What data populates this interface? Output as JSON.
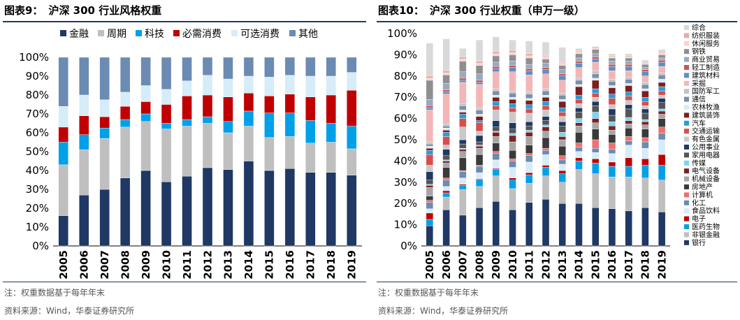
{
  "left_panel": {
    "figure_label": "图表9：",
    "title": "沪深 300 行业风格权重",
    "note": "注：权重数据基于每年年末",
    "source": "资料来源：Wind，华泰证券研究所"
  },
  "right_panel": {
    "figure_label": "图表10：",
    "title": "沪深 300 行业权重（申万一级）",
    "note": "注：权重数据基于每年年末",
    "source": "资料来源：Wind，华泰证券研究所"
  },
  "chart_data": [
    {
      "type": "bar",
      "stacked": true,
      "categories": [
        "2005",
        "2006",
        "2007",
        "2008",
        "2009",
        "2010",
        "2011",
        "2012",
        "2013",
        "2014",
        "2015",
        "2016",
        "2017",
        "2018",
        "2019"
      ],
      "y_tick_labels": [
        "0%",
        "10%",
        "20%",
        "30%",
        "40%",
        "50%",
        "60%",
        "70%",
        "80%",
        "90%",
        "100%"
      ],
      "ylim": [
        0,
        100
      ],
      "legend_position": "top",
      "series": [
        {
          "name": "金融",
          "color": "#1f3864",
          "values": [
            16,
            27,
            30,
            36,
            40,
            34,
            37,
            41.5,
            40.5,
            45,
            40,
            41,
            39,
            39,
            37.5
          ]
        },
        {
          "name": "周期",
          "color": "#bfbfbf",
          "values": [
            27,
            24,
            27,
            27,
            26,
            28,
            26.5,
            23.5,
            19.5,
            18.5,
            17.5,
            17,
            15.5,
            16,
            14
          ]
        },
        {
          "name": "科技",
          "color": "#00a0e9",
          "values": [
            12,
            8,
            5.5,
            4,
            4,
            3,
            3.5,
            3.5,
            6,
            8,
            13,
            12.5,
            12,
            10,
            12
          ]
        },
        {
          "name": "必需消费",
          "color": "#c00000",
          "values": [
            8,
            10,
            6,
            7,
            6.5,
            10,
            12.5,
            11.5,
            13,
            9.5,
            9,
            10,
            12.5,
            15,
            19
          ]
        },
        {
          "name": "可选消费",
          "color": "#d6ecf8",
          "values": [
            11,
            11,
            9,
            7.5,
            8.5,
            8,
            8,
            10.5,
            9.5,
            9,
            10,
            10,
            11,
            10,
            9.5
          ]
        },
        {
          "name": "其他",
          "color": "#6c8bb2",
          "values": [
            26,
            20,
            22.5,
            18.5,
            15,
            17,
            12.5,
            9.5,
            11.5,
            10,
            10.5,
            9.5,
            10,
            10,
            8
          ]
        }
      ]
    },
    {
      "type": "bar",
      "stacked": true,
      "categories": [
        "2005",
        "2006",
        "2007",
        "2008",
        "2009",
        "2010",
        "2011",
        "2012",
        "2013",
        "2014",
        "2015",
        "2016",
        "2017",
        "2018",
        "2019"
      ],
      "y_tick_labels": [
        "0%",
        "10%",
        "20%",
        "30%",
        "40%",
        "50%",
        "60%",
        "70%",
        "80%",
        "90%",
        "100%"
      ],
      "ylim": [
        0,
        100
      ],
      "legend_position": "right",
      "series": [
        {
          "name": "银行",
          "color": "#1f3864",
          "values": [
            9.5,
            17,
            14.5,
            18,
            21,
            17,
            20.5,
            22,
            20,
            20,
            18,
            17.5,
            16.5,
            18,
            16
          ]
        },
        {
          "name": "非银金融",
          "color": "#bfbfbf",
          "values": [
            0,
            6,
            12,
            10,
            12,
            10,
            9,
            11,
            10,
            16,
            16,
            15,
            16,
            14,
            15
          ]
        },
        {
          "name": "医药生物",
          "color": "#00a0e9",
          "values": [
            3,
            2,
            2,
            3,
            3,
            4,
            4,
            4,
            4,
            4,
            5,
            5,
            5,
            6,
            7
          ]
        },
        {
          "name": "电子",
          "color": "#c00000",
          "values": [
            3,
            1,
            0.5,
            0.5,
            0.5,
            1,
            1,
            1,
            1.5,
            1.5,
            2,
            2,
            4,
            3,
            5
          ]
        },
        {
          "name": "食品饮料",
          "color": "#d6ecf8",
          "values": [
            2,
            2,
            3,
            3,
            4,
            5,
            5,
            5,
            3,
            3,
            3,
            4,
            6,
            5,
            7
          ]
        },
        {
          "name": "化工",
          "color": "#6c8bb2",
          "values": [
            3,
            3,
            3,
            3,
            3,
            3,
            3,
            2,
            2,
            2,
            2,
            2,
            2,
            3,
            3
          ]
        },
        {
          "name": "计算机",
          "color": "#ee7070",
          "values": [
            1,
            1,
            0.5,
            0.5,
            1,
            1,
            1,
            1,
            2,
            2,
            4,
            3,
            2,
            2,
            3
          ]
        },
        {
          "name": "房地产",
          "color": "#3a3a3a",
          "values": [
            2,
            5,
            6,
            5,
            4,
            4,
            4,
            5,
            4.5,
            5,
            5,
            4,
            4,
            4,
            4
          ]
        },
        {
          "name": "机械设备",
          "color": "#a6a6a6",
          "values": [
            4,
            2,
            3,
            3,
            3,
            4,
            4,
            3,
            3,
            3,
            3,
            2,
            2,
            2,
            2
          ]
        },
        {
          "name": "电气设备",
          "color": "#7f2020",
          "values": [
            1,
            1,
            1,
            1,
            2,
            3,
            2,
            2,
            1.5,
            1.5,
            2,
            2,
            1.5,
            1.5,
            1.5
          ]
        },
        {
          "name": "传媒",
          "color": "#7fd3f0",
          "values": [
            0.5,
            0.5,
            0.5,
            0.5,
            0.5,
            1,
            1,
            1,
            2,
            2,
            3,
            2,
            1.5,
            1,
            1
          ]
        },
        {
          "name": "家用电器",
          "color": "#555555",
          "values": [
            2,
            2,
            2,
            1.5,
            2,
            2,
            2,
            2,
            3,
            3,
            3,
            3,
            4,
            3,
            3
          ]
        },
        {
          "name": "公用事业",
          "color": "#203864",
          "values": [
            4,
            3,
            2,
            3,
            3,
            3,
            2,
            2,
            2,
            2,
            2,
            3,
            2,
            2,
            2
          ]
        },
        {
          "name": "有色金属",
          "color": "#c9c9c9",
          "values": [
            3,
            2,
            6,
            2,
            5,
            5,
            4,
            3,
            2.5,
            2,
            2,
            2,
            2,
            1.5,
            1.5
          ]
        },
        {
          "name": "交通运输",
          "color": "#d94d4d",
          "values": [
            5,
            4,
            4,
            4,
            2,
            2,
            2,
            2,
            2,
            2,
            2,
            3,
            2,
            2,
            2
          ]
        },
        {
          "name": "汽车",
          "color": "#2e9bd6",
          "values": [
            2,
            2,
            2,
            1,
            2,
            2,
            2,
            2,
            2,
            2,
            2,
            2,
            2,
            2,
            2
          ]
        },
        {
          "name": "建筑装饰",
          "color": "#7f1d1d",
          "values": [
            1,
            1,
            1,
            2,
            2,
            2,
            2,
            2,
            3,
            4,
            4,
            3,
            3,
            3,
            2
          ]
        },
        {
          "name": "农林牧渔",
          "color": "#dbeaf5",
          "values": [
            1,
            1,
            1,
            1,
            1,
            1,
            1,
            1,
            1,
            1,
            1,
            1,
            1,
            1,
            1.5
          ]
        },
        {
          "name": "通信",
          "color": "#7a8fa8",
          "values": [
            1,
            1,
            2,
            2,
            2,
            2,
            2,
            2,
            2,
            2,
            2,
            2,
            2,
            2,
            2
          ]
        },
        {
          "name": "国防军工",
          "color": "#c4c4c4",
          "values": [
            1,
            1,
            1,
            1,
            1,
            1,
            1,
            1,
            1,
            1,
            1.5,
            1,
            1,
            1,
            1
          ]
        },
        {
          "name": "采掘",
          "color": "#f3b6b6",
          "values": [
            15,
            14,
            10,
            11,
            8,
            9,
            8,
            7,
            6,
            5,
            4,
            4,
            3,
            3,
            3
          ]
        },
        {
          "name": "建筑材料",
          "color": "#5c8ec7",
          "values": [
            1,
            1,
            1,
            1,
            1.5,
            2,
            2,
            2,
            2,
            2,
            1.5,
            2,
            2,
            2,
            2
          ]
        },
        {
          "name": "轻工制造",
          "color": "#c95555",
          "values": [
            1,
            1,
            1,
            1,
            1,
            1,
            1,
            1,
            1,
            1,
            1,
            1,
            1,
            1,
            1
          ]
        },
        {
          "name": "商业贸易",
          "color": "#9aa9bd",
          "values": [
            3,
            3,
            3,
            3,
            2,
            2,
            2,
            2,
            2,
            1.5,
            1.5,
            1.5,
            1.5,
            1,
            1
          ]
        },
        {
          "name": "钢铁",
          "color": "#8f8f8f",
          "values": [
            9,
            4,
            5,
            4,
            3,
            3,
            3,
            2,
            2,
            2,
            2,
            1.5,
            1.5,
            1.5,
            1.5
          ]
        },
        {
          "name": "休闲服务",
          "color": "#f9d2d2",
          "values": [
            1,
            1,
            1,
            1,
            1,
            1,
            1,
            1,
            1,
            1,
            0.5,
            0.5,
            0.5,
            0.5,
            1
          ]
        },
        {
          "name": "纺织服装",
          "color": "#e8a8a8",
          "values": [
            1,
            1,
            1,
            1,
            1,
            1,
            1,
            0.5,
            0.5,
            0.5,
            0.5,
            0.5,
            0.5,
            0.5,
            0.5
          ]
        },
        {
          "name": "综合",
          "color": "#d9d9d9",
          "values": [
            15.5,
            15,
            4,
            10,
            7,
            5,
            6,
            6.5,
            7,
            1,
            0.5,
            1,
            1,
            1,
            1
          ]
        }
      ]
    }
  ]
}
